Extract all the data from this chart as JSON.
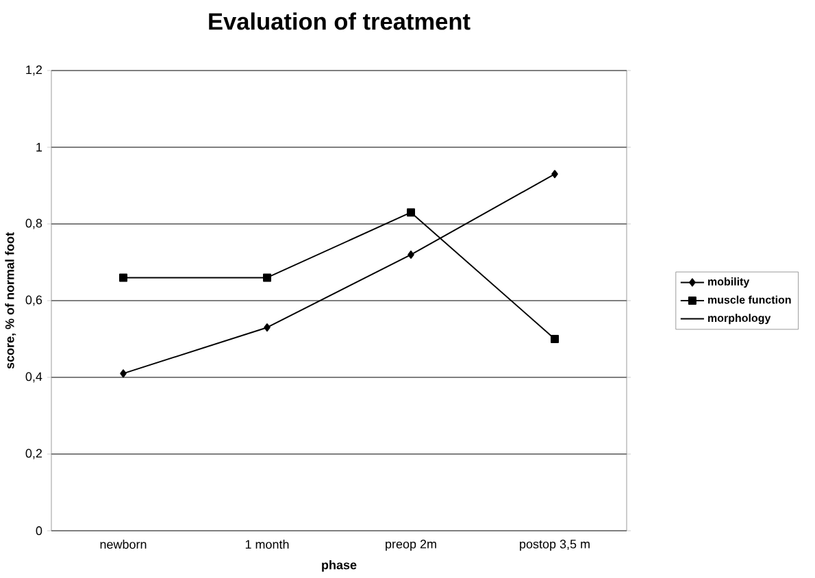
{
  "chart_data": {
    "type": "line",
    "title": "Evaluation of treatment",
    "xlabel": "phase",
    "ylabel": "score, % of normal foot",
    "categories": [
      "newborn",
      "1 month",
      "preop 2m",
      "postop 3,5 m"
    ],
    "series": [
      {
        "name": "mobility",
        "color": "#000000",
        "marker": "diamond",
        "values": [
          0.41,
          0.53,
          0.72,
          0.93
        ]
      },
      {
        "name": "muscle function",
        "color": "#000000",
        "marker": "square",
        "values": [
          0.66,
          0.66,
          0.83,
          0.5
        ]
      },
      {
        "name": "morphology",
        "marker": "none",
        "values": [
          null,
          null,
          null,
          null
        ]
      }
    ],
    "ylim": [
      0,
      1.2
    ],
    "yticks": [
      0,
      {
        "value": 0.2,
        "label": "0,2"
      },
      {
        "value": 0.4,
        "label": "0,4"
      },
      {
        "value": 0.6,
        "label": "0,6"
      },
      {
        "value": 0.8,
        "label": "0,8"
      },
      1,
      {
        "value": 1.2,
        "label": "1,2"
      }
    ],
    "grid": "y",
    "legend": "right",
    "line_style": "solid"
  }
}
